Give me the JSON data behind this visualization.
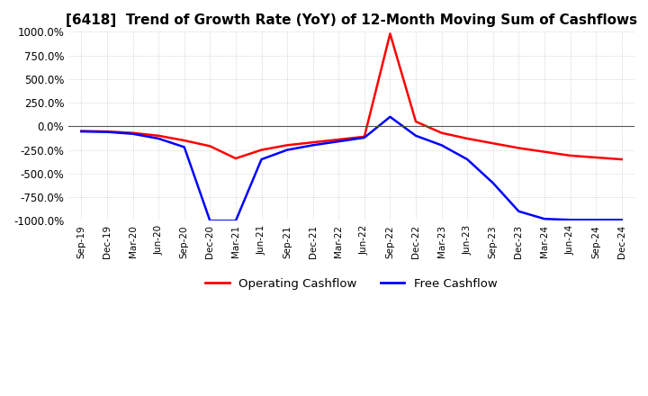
{
  "title": "[6418]  Trend of Growth Rate (YoY) of 12-Month Moving Sum of Cashflows",
  "ylim": [
    -1000,
    1000
  ],
  "yticks": [
    -1000,
    -750,
    -500,
    -250,
    0,
    250,
    500,
    750,
    1000
  ],
  "ytick_labels": [
    "-1000.0%",
    "-750.0%",
    "-500.0%",
    "-250.0%",
    "0.0%",
    "250.0%",
    "500.0%",
    "750.0%",
    "1000.0%"
  ],
  "x_labels": [
    "Sep-19",
    "Dec-19",
    "Mar-20",
    "Jun-20",
    "Sep-20",
    "Dec-20",
    "Mar-21",
    "Jun-21",
    "Sep-21",
    "Dec-21",
    "Mar-22",
    "Jun-22",
    "Sep-22",
    "Dec-22",
    "Mar-23",
    "Jun-23",
    "Sep-23",
    "Dec-23",
    "Mar-24",
    "Jun-24",
    "Sep-24",
    "Dec-24"
  ],
  "operating_cashflow": [
    -50,
    -55,
    -70,
    -100,
    -150,
    -210,
    -340,
    -250,
    -200,
    -170,
    -140,
    -110,
    980,
    50,
    -70,
    -130,
    -180,
    -230,
    -270,
    -310,
    -330,
    -350
  ],
  "free_cashflow": [
    -55,
    -60,
    -80,
    -130,
    -220,
    -1000,
    -1000,
    -350,
    -250,
    -200,
    -160,
    -120,
    100,
    -100,
    -200,
    -350,
    -600,
    -900,
    -980,
    -990,
    -990,
    -990
  ],
  "operating_color": "#FF0000",
  "free_color": "#0000FF",
  "background_color": "#FFFFFF",
  "grid_color": "#AAAAAA",
  "title_fontsize": 11,
  "legend_labels": [
    "Operating Cashflow",
    "Free Cashflow"
  ]
}
